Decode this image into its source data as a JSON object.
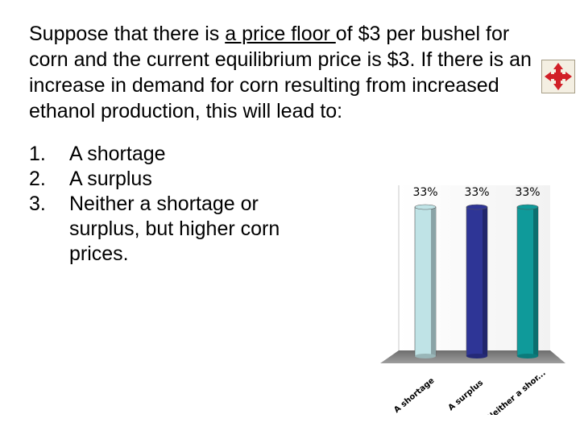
{
  "question": {
    "before": "Suppose that there is ",
    "underlined": "a price floor ",
    "after": "of $3 per bushel for corn and the current equilibrium price is $3.  If there is an increase in demand for corn resulting from increased ethanol production, this will lead to:"
  },
  "answers": [
    {
      "number": "1.",
      "text": "A shortage"
    },
    {
      "number": "2.",
      "text": "A surplus"
    },
    {
      "number": "3.",
      "text": "Neither a shortage or surplus, but higher corn prices."
    }
  ],
  "logo": {
    "icon": "polling-logo-icon",
    "color": "#d11f27"
  },
  "chart_data": {
    "type": "bar",
    "categories": [
      "A shortage",
      "A surplus",
      "Neither a shor..."
    ],
    "values": [
      33,
      33,
      33
    ],
    "value_labels": [
      "33%",
      "33%",
      "33%"
    ],
    "colors": [
      "#bfe3e6",
      "#2e3596",
      "#0f9a9a"
    ],
    "ylim": [
      0,
      33
    ],
    "style": "3d"
  }
}
